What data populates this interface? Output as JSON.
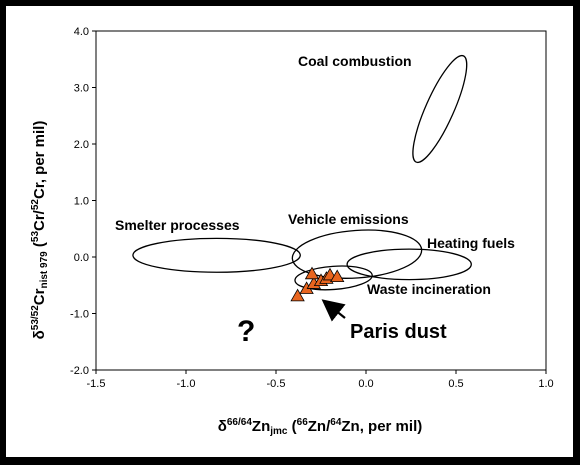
{
  "chart_data": {
    "type": "scatter",
    "title": "",
    "xlabel": "δ66/64Znjmc (66Zn/64Zn, per mil)",
    "ylabel": "δ53/52Crnist 979 (53Cr/52Cr, per mil)",
    "xlim": [
      -1.5,
      1.0
    ],
    "ylim": [
      -2.0,
      4.0
    ],
    "x_ticks": [
      "-1.5",
      "-1.0",
      "-0.5",
      "0.0",
      "0.5",
      "1.0"
    ],
    "y_ticks": [
      "-2.0",
      "-1.0",
      "0.0",
      "1.0",
      "2.0",
      "3.0",
      "4.0"
    ],
    "grid": false,
    "source_fields": [
      {
        "name": "Coal combustion",
        "center": [
          0.41,
          2.62
        ],
        "x_range": [
          0.22,
          0.59
        ],
        "y_range": [
          1.55,
          3.65
        ],
        "tilt": "steep"
      },
      {
        "name": "Smelter processes",
        "center": [
          -0.83,
          0.03
        ],
        "x_range": [
          -1.3,
          -0.37
        ],
        "y_range": [
          -0.26,
          0.34
        ]
      },
      {
        "name": "Vehicle emissions",
        "center": [
          -0.05,
          0.05
        ],
        "x_range": [
          -0.4,
          0.32
        ],
        "y_range": [
          -0.42,
          0.42
        ],
        "tilt": "slight"
      },
      {
        "name": "Heating fuels",
        "center": [
          0.24,
          -0.13
        ],
        "x_range": [
          -0.06,
          0.63
        ],
        "y_range": [
          -0.38,
          0.16
        ]
      },
      {
        "name": "Waste incineration",
        "center": [
          -0.18,
          -0.37
        ],
        "x_range": [
          -0.38,
          0.05
        ],
        "y_range": [
          -0.56,
          -0.15
        ],
        "tilt": "slight"
      }
    ],
    "series": [
      {
        "name": "Paris dust",
        "points": [
          {
            "x": -0.38,
            "y": -0.69
          },
          {
            "x": -0.33,
            "y": -0.56
          },
          {
            "x": -0.29,
            "y": -0.47
          },
          {
            "x": -0.25,
            "y": -0.42
          },
          {
            "x": -0.22,
            "y": -0.38
          },
          {
            "x": -0.2,
            "y": -0.32
          },
          {
            "x": -0.16,
            "y": -0.35
          },
          {
            "x": -0.3,
            "y": -0.3
          }
        ],
        "marker": "triangle",
        "color": "#e8651f"
      }
    ],
    "annotations": {
      "paris_label": "Paris dust",
      "question": "?"
    }
  },
  "colors": {
    "background": "#000000",
    "plot_bg": "#ffffff",
    "marker": "#e8651f",
    "ink": "#000000"
  }
}
